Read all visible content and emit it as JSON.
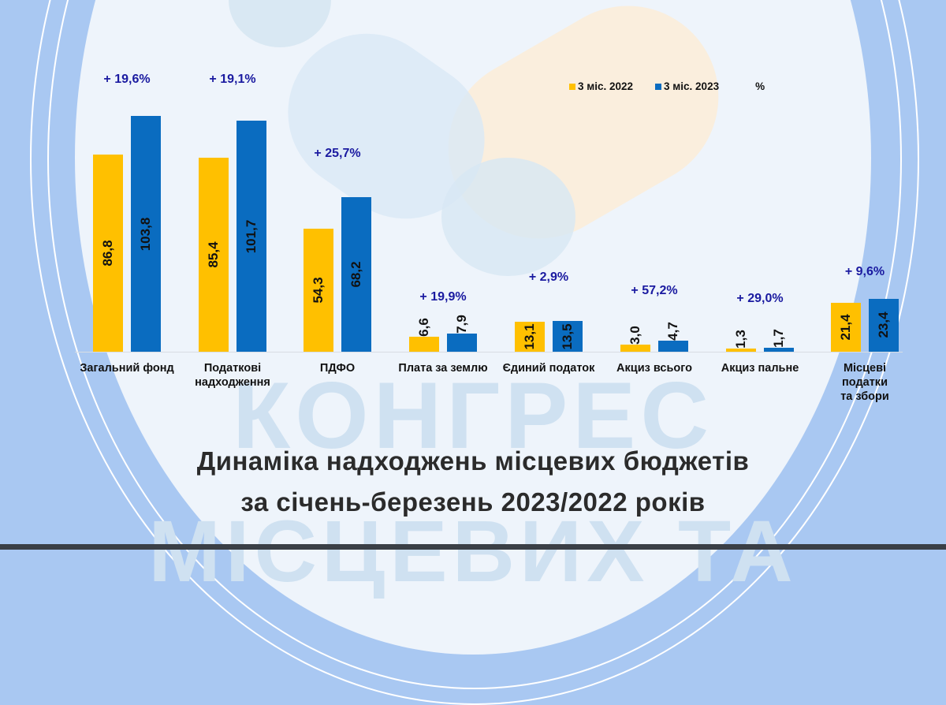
{
  "colors": {
    "series_2022": "#ffc000",
    "series_2023": "#0a6cc0",
    "pct_text": "#1a1aa0"
  },
  "legend": {
    "s2022": "3 міс. 2022",
    "s2023": "3 міс. 2023",
    "pct": "%"
  },
  "watermark": {
    "line1": "КОНГРЕС",
    "line2": "МІСЦЕВИХ ТА"
  },
  "title": {
    "line1": "Динаміка надходжень місцевих бюджетів",
    "line2": "за січень-березень 2023/2022 років"
  },
  "categories": [
    {
      "label": "Загальний фонд",
      "v2022": "86,8",
      "v2023": "103,8",
      "pct": "+ 19,6%"
    },
    {
      "label": "Податкові\nнадходження",
      "v2022": "85,4",
      "v2023": "101,7",
      "pct": "+ 19,1%"
    },
    {
      "label": "ПДФО",
      "v2022": "54,3",
      "v2023": "68,2",
      "pct": "+ 25,7%"
    },
    {
      "label": "Плата за землю",
      "v2022": "6,6",
      "v2023": "7,9",
      "pct": "+ 19,9%"
    },
    {
      "label": "Єдиний податок",
      "v2022": "13,1",
      "v2023": "13,5",
      "pct": "+ 2,9%"
    },
    {
      "label": "Акциз всього",
      "v2022": "3,0",
      "v2023": "4,7",
      "pct": "+ 57,2%"
    },
    {
      "label": "Акциз пальне",
      "v2022": "1,3",
      "v2023": "1,7",
      "pct": "+ 29,0%"
    },
    {
      "label": "Місцеві податки\nта збори",
      "v2022": "21,4",
      "v2023": "23,4",
      "pct": "+ 9,6%"
    }
  ],
  "chart_data": {
    "type": "bar",
    "title": "Динаміка надходжень місцевих бюджетів за січень-березень 2023/2022 років",
    "xlabel": "",
    "ylabel": "",
    "categories": [
      "Загальний фонд",
      "Податкові надходження",
      "ПДФО",
      "Плата за землю",
      "Єдиний податок",
      "Акциз всього",
      "Акциз пальне",
      "Місцеві податки та збори"
    ],
    "series": [
      {
        "name": "3 міс. 2022",
        "color": "#ffc000",
        "values": [
          86.8,
          85.4,
          54.3,
          6.6,
          13.1,
          3.0,
          1.3,
          21.4
        ]
      },
      {
        "name": "3 міс. 2023",
        "color": "#0a6cc0",
        "values": [
          103.8,
          101.7,
          68.2,
          7.9,
          13.5,
          4.7,
          1.7,
          23.4
        ]
      }
    ],
    "annotations": {
      "growth_pct": [
        "+ 19,6%",
        "+ 19,1%",
        "+ 25,7%",
        "+ 19,9%",
        "+ 2,9%",
        "+ 57,2%",
        "+ 29,0%",
        "+ 9,6%"
      ]
    },
    "legend": [
      "3 міс. 2022",
      "3 міс. 2023",
      "%"
    ],
    "legend_position": "top-right",
    "grid": false,
    "ylim": [
      0,
      110
    ]
  }
}
